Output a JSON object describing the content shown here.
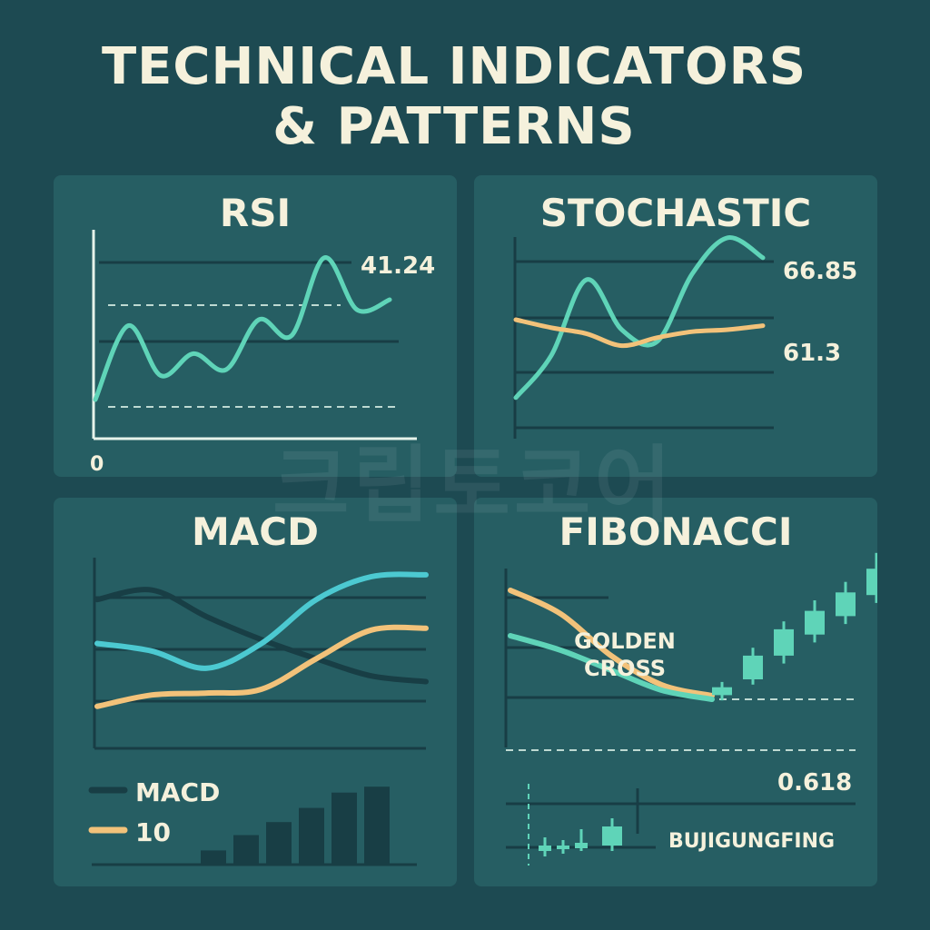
{
  "title_line1": "TECHNICAL INDICATORS",
  "title_line2": "& PATTERNS",
  "watermark": "크립토코어",
  "colors": {
    "background": "#1d4a52",
    "panel": "#265e63",
    "grid": "#183d45",
    "mint": "#5fd4b8",
    "orange": "#f2c27a",
    "cyan": "#4cc9d1",
    "dark": "#183e45",
    "text": "#f5f1dc"
  },
  "chart_data": [
    {
      "type": "line",
      "title": "RSI",
      "value_label": "41.24",
      "axis_label": "0",
      "series": [
        {
          "values": [
            [
              0,
              15
            ],
            [
              1,
              52
            ],
            [
              2,
              27
            ],
            [
              3,
              38
            ],
            [
              4,
              30
            ],
            [
              5,
              55
            ],
            [
              6,
              47
            ],
            [
              7,
              86
            ],
            [
              8,
              60
            ],
            [
              9,
              65
            ]
          ]
        }
      ]
    },
    {
      "type": "line",
      "title": "STOCHASTIC",
      "value_labels": [
        "66.85",
        "61.3"
      ],
      "series": [
        {
          "values": [
            [
              0,
              16
            ],
            [
              1,
              37
            ],
            [
              2,
              75
            ],
            [
              3,
              50
            ],
            [
              4,
              44
            ],
            [
              5,
              78
            ],
            [
              6,
              96
            ],
            [
              7,
              86
            ]
          ]
        },
        {
          "values": [
            [
              0,
              55
            ],
            [
              1,
              51
            ],
            [
              2,
              48
            ],
            [
              3,
              42
            ],
            [
              4,
              46
            ],
            [
              5,
              49
            ],
            [
              6,
              50
            ],
            [
              7,
              52
            ]
          ]
        }
      ]
    },
    {
      "type": "line",
      "title": "MACD",
      "legend": [
        "MACD",
        "10"
      ],
      "series": [
        {
          "name": "MACD",
          "values": [
            [
              0,
              78
            ],
            [
              1,
              83
            ],
            [
              2,
              69
            ],
            [
              3,
              57
            ],
            [
              4,
              47
            ],
            [
              5,
              38
            ],
            [
              6,
              35
            ]
          ]
        },
        {
          "values": [
            [
              0,
              55
            ],
            [
              1,
              51
            ],
            [
              2,
              42
            ],
            [
              3,
              55
            ],
            [
              4,
              78
            ],
            [
              5,
              90
            ],
            [
              6,
              91
            ]
          ]
        },
        {
          "name": "10",
          "values": [
            [
              0,
              22
            ],
            [
              1,
              28
            ],
            [
              2,
              29
            ],
            [
              3,
              31
            ],
            [
              4,
              47
            ],
            [
              5,
              62
            ],
            [
              6,
              63
            ]
          ]
        }
      ],
      "bars": [
        12,
        25,
        36,
        48,
        61,
        66
      ]
    },
    {
      "type": "line",
      "title": "FIBONACCI",
      "annotation": [
        "GOLDEN",
        "CROSS"
      ],
      "level_label": "0.618",
      "footer_label": "BUJIGUNGFING",
      "series": [
        {
          "values": [
            [
              0,
              88
            ],
            [
              1,
              75
            ],
            [
              2,
              52
            ],
            [
              3,
              36
            ],
            [
              4,
              30
            ]
          ]
        },
        {
          "values": [
            [
              0,
              63
            ],
            [
              1,
              55
            ],
            [
              2,
              44
            ],
            [
              3,
              33
            ],
            [
              4,
              28
            ]
          ]
        }
      ],
      "candles": [
        {
          "open": 28,
          "close": 34,
          "high": 38,
          "low": 24
        },
        {
          "open": 40,
          "close": 58,
          "high": 64,
          "low": 36
        },
        {
          "open": 58,
          "close": 78,
          "high": 84,
          "low": 52
        },
        {
          "open": 74,
          "close": 92,
          "high": 100,
          "low": 68
        },
        {
          "open": 88,
          "close": 106,
          "high": 114,
          "low": 82
        },
        {
          "open": 104,
          "close": 124,
          "high": 136,
          "low": 98
        }
      ],
      "small_candles": [
        {
          "open": 2,
          "close": 4,
          "high": 7,
          "low": 0
        },
        {
          "open": 3,
          "close": 4,
          "high": 6,
          "low": 1
        },
        {
          "open": 3,
          "close": 5,
          "high": 10,
          "low": 2
        },
        {
          "open": 4,
          "close": 11,
          "high": 14,
          "low": 2
        }
      ]
    }
  ]
}
